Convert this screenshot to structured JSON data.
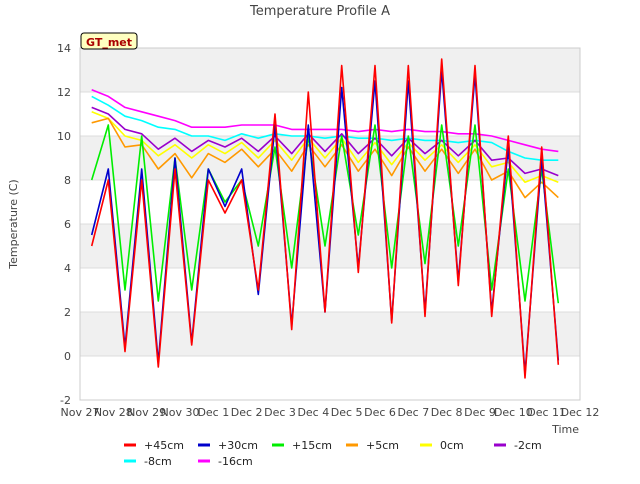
{
  "chart_data": {
    "type": "line",
    "title": "Temperature Profile A",
    "xlabel": "Time",
    "ylabel": "Temperature (C)",
    "badge": "GT_met",
    "xticks": [
      "Nov 27",
      "Nov 28",
      "Nov 29",
      "Nov 30",
      "Dec 1",
      "Dec 2",
      "Dec 3",
      "Dec 4",
      "Dec 5",
      "Dec 6",
      "Dec 7",
      "Dec 8",
      "Dec 9",
      "Dec 10",
      "Dec 11",
      "Dec 12"
    ],
    "yticks": [
      -2,
      0,
      2,
      4,
      6,
      8,
      10,
      12,
      14
    ],
    "xlim": [
      0,
      15
    ],
    "ylim": [
      -2,
      14
    ],
    "x_unit": "days since Nov 27",
    "grid": true,
    "legend_position": "bottom",
    "x": [
      0.35,
      0.85,
      1.35,
      1.85,
      2.35,
      2.85,
      3.35,
      3.85,
      4.35,
      4.85,
      5.35,
      5.85,
      6.35,
      6.85,
      7.35,
      7.85,
      8.35,
      8.85,
      9.35,
      9.85,
      10.35,
      10.85,
      11.35,
      11.85,
      12.35,
      12.85,
      13.35,
      13.85,
      14.35
    ],
    "series": [
      {
        "name": "+45cm",
        "color": "#ff0000",
        "values": [
          5.0,
          8.0,
          0.2,
          8.0,
          -0.5,
          8.5,
          0.5,
          8.0,
          6.5,
          8.0,
          3.0,
          11.0,
          1.2,
          12.0,
          2.0,
          13.2,
          3.8,
          13.2,
          1.5,
          13.2,
          1.8,
          13.5,
          3.2,
          13.2,
          1.8,
          10.0,
          -1.0,
          9.5,
          -0.4
        ]
      },
      {
        "name": "+30cm",
        "color": "#0000cc",
        "values": [
          5.5,
          8.5,
          0.4,
          8.5,
          -0.3,
          9.0,
          0.6,
          8.5,
          6.8,
          8.5,
          2.8,
          10.5,
          1.4,
          10.5,
          2.0,
          12.2,
          4.0,
          12.5,
          1.6,
          12.5,
          2.0,
          13.0,
          3.4,
          12.8,
          2.0,
          9.5,
          -0.8,
          9.0,
          -0.2
        ]
      },
      {
        "name": "+15cm",
        "color": "#00ee00",
        "values": [
          8.0,
          10.5,
          3.0,
          10.0,
          2.5,
          9.0,
          3.0,
          8.5,
          7.0,
          8.0,
          5.0,
          9.5,
          4.0,
          10.0,
          5.0,
          10.0,
          5.5,
          10.5,
          4.0,
          10.0,
          4.2,
          10.5,
          5.0,
          10.5,
          3.0,
          8.5,
          2.5,
          8.5,
          2.4
        ]
      },
      {
        "name": "+5cm",
        "color": "#ff9900",
        "values": [
          10.6,
          10.8,
          9.5,
          9.6,
          8.5,
          9.2,
          8.1,
          9.2,
          8.8,
          9.4,
          8.6,
          9.4,
          8.4,
          9.6,
          8.6,
          9.6,
          8.4,
          9.4,
          8.2,
          9.5,
          8.4,
          9.4,
          8.3,
          9.4,
          8.0,
          8.4,
          7.2,
          7.9,
          7.2
        ]
      },
      {
        "name": "0cm",
        "color": "#ffff00",
        "values": [
          11.1,
          10.8,
          10.0,
          9.8,
          9.1,
          9.6,
          9.0,
          9.6,
          9.2,
          9.7,
          9.0,
          9.8,
          8.9,
          9.9,
          9.0,
          9.9,
          8.8,
          9.7,
          8.7,
          9.7,
          8.9,
          9.6,
          8.8,
          9.6,
          8.6,
          8.8,
          7.9,
          8.2,
          7.9
        ]
      },
      {
        "name": "-2cm",
        "color": "#9900cc",
        "values": [
          11.3,
          11.0,
          10.3,
          10.1,
          9.4,
          9.9,
          9.3,
          9.8,
          9.5,
          9.9,
          9.3,
          10.0,
          9.2,
          10.1,
          9.3,
          10.1,
          9.2,
          9.9,
          9.1,
          9.9,
          9.2,
          9.8,
          9.1,
          9.8,
          8.9,
          9.0,
          8.3,
          8.5,
          8.2
        ]
      },
      {
        "name": "-8cm",
        "color": "#00ffff",
        "values": [
          11.8,
          11.4,
          10.9,
          10.7,
          10.4,
          10.3,
          10.0,
          10.0,
          9.8,
          10.1,
          9.9,
          10.1,
          10.0,
          10.0,
          9.9,
          10.0,
          9.9,
          9.9,
          9.8,
          9.9,
          9.8,
          9.8,
          9.7,
          9.8,
          9.7,
          9.3,
          9.0,
          8.9,
          8.9
        ]
      },
      {
        "name": "-16cm",
        "color": "#ff00ff",
        "values": [
          12.1,
          11.8,
          11.3,
          11.1,
          10.9,
          10.7,
          10.4,
          10.4,
          10.4,
          10.5,
          10.5,
          10.5,
          10.3,
          10.3,
          10.3,
          10.3,
          10.2,
          10.3,
          10.2,
          10.3,
          10.2,
          10.2,
          10.1,
          10.1,
          10.0,
          9.8,
          9.6,
          9.4,
          9.3
        ]
      }
    ]
  }
}
